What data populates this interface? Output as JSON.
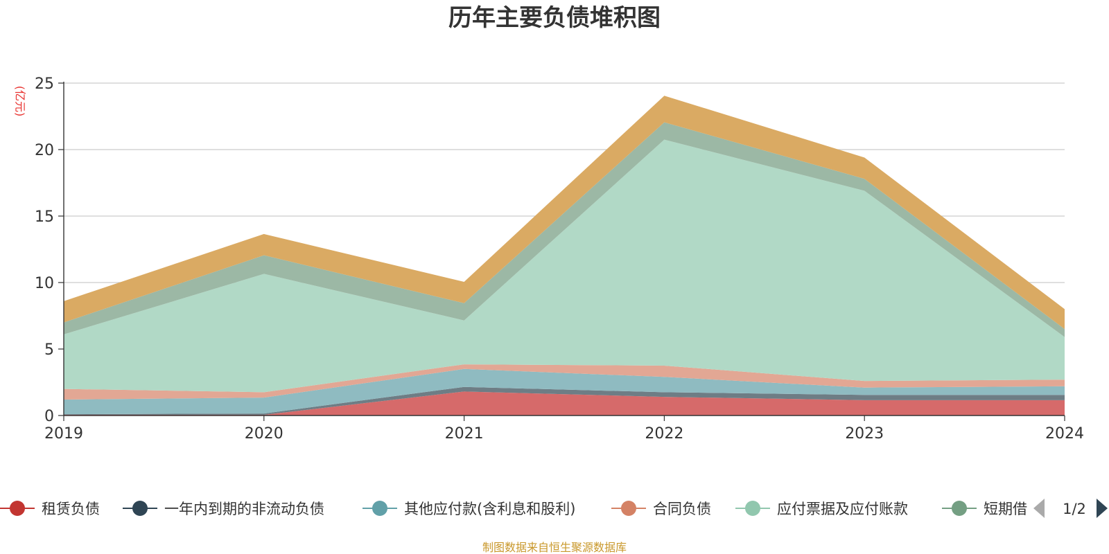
{
  "chart_data": {
    "type": "area",
    "stacked": true,
    "title": "历年主要负债堆积图",
    "unit_label": "(亿元)",
    "x": [
      "2019",
      "2020",
      "2021",
      "2022",
      "2023",
      "2024"
    ],
    "ylim": [
      0,
      25
    ],
    "yticks": [
      "0",
      "5",
      "10",
      "15",
      "20",
      "25"
    ],
    "grid": true,
    "legend_position": "bottom",
    "series": [
      {
        "name": "租赁负债",
        "color": "#d66a6a",
        "legend_color": "#c23531",
        "values": [
          0.05,
          0.05,
          1.8,
          1.4,
          1.15,
          1.15
        ]
      },
      {
        "name": "一年内到期的非流动负债",
        "color": "#6e7d85",
        "legend_color": "#2f4554",
        "values": [
          0.05,
          0.1,
          0.35,
          0.35,
          0.4,
          0.4
        ]
      },
      {
        "name": "其他应付款(含利息和股利)",
        "color": "#8fbbc1",
        "legend_color": "#61a0a8",
        "values": [
          1.1,
          1.2,
          1.35,
          1.15,
          0.55,
          0.65
        ]
      },
      {
        "name": "合同负债",
        "color": "#e2a794",
        "legend_color": "#d48265",
        "values": [
          0.8,
          0.4,
          0.35,
          0.85,
          0.5,
          0.5
        ]
      },
      {
        "name": "应付票据及应付账款",
        "color": "#b1d9c6",
        "legend_color": "#91c7ae",
        "values": [
          4.1,
          8.9,
          3.3,
          17.0,
          14.3,
          3.2
        ]
      },
      {
        "name": "短期借款",
        "color": "#9cb8a5",
        "legend_color": "#749f83",
        "values": [
          0.9,
          1.4,
          1.3,
          1.3,
          0.9,
          0.6
        ]
      },
      {
        "name": "",
        "color": "#daaa63",
        "legend_color": "#ca8622",
        "values": [
          1.6,
          1.6,
          1.6,
          2.0,
          1.6,
          1.5
        ]
      }
    ],
    "pager": "1/2",
    "source": "制图数据来自恒生聚源数据库"
  }
}
